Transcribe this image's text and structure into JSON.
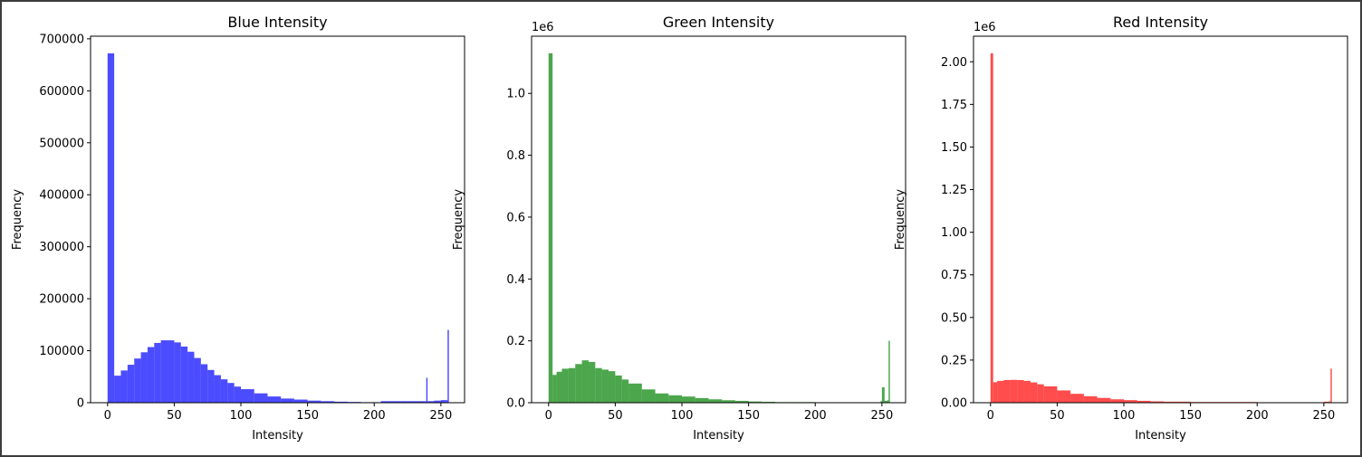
{
  "chart_data": [
    {
      "type": "bar",
      "title": "Blue Intensity",
      "xlabel": "Intensity",
      "ylabel": "Frequency",
      "color": "#0000ff",
      "opacity": 0.7,
      "xlim": [
        -12.75,
        267.75
      ],
      "ylim": [
        0,
        705000
      ],
      "y_offset_label": "",
      "xticks": [
        0,
        50,
        100,
        150,
        200,
        250
      ],
      "xtick_labels": [
        "0",
        "50",
        "100",
        "150",
        "200",
        "250"
      ],
      "yticks": [
        0,
        100000,
        200000,
        300000,
        400000,
        500000,
        600000,
        700000
      ],
      "ytick_labels": [
        "0",
        "100000",
        "200000",
        "300000",
        "400000",
        "500000",
        "600000",
        "700000"
      ],
      "x": [
        0,
        5,
        10,
        15,
        20,
        25,
        30,
        35,
        40,
        45,
        50,
        55,
        60,
        65,
        70,
        75,
        80,
        85,
        90,
        95,
        100,
        110,
        120,
        130,
        140,
        150,
        160,
        170,
        180,
        190,
        200,
        205,
        210,
        220,
        230,
        238,
        239,
        240,
        245,
        250,
        254,
        255
      ],
      "values": [
        672000,
        52000,
        62000,
        73000,
        85000,
        97000,
        107000,
        115000,
        120000,
        120000,
        116000,
        108000,
        98000,
        86000,
        74000,
        63000,
        53000,
        45000,
        38000,
        31000,
        26000,
        18000,
        12000,
        8000,
        6000,
        4000,
        3000,
        2000,
        1500,
        1000,
        1000,
        3000,
        3000,
        3000,
        3000,
        3000,
        48000,
        3000,
        4000,
        5000,
        5000,
        140000
      ]
    },
    {
      "type": "bar",
      "title": "Green Intensity",
      "xlabel": "Intensity",
      "ylabel": "Frequency",
      "color": "#008000",
      "opacity": 0.7,
      "xlim": [
        -12.75,
        267.75
      ],
      "ylim": [
        0,
        1185000
      ],
      "y_offset_label": "1e6",
      "xticks": [
        0,
        50,
        100,
        150,
        200,
        250
      ],
      "xtick_labels": [
        "0",
        "50",
        "100",
        "150",
        "200",
        "250"
      ],
      "yticks": [
        0,
        200000,
        400000,
        600000,
        800000,
        1000000
      ],
      "ytick_labels": [
        "0.0",
        "0.2",
        "0.4",
        "0.6",
        "0.8",
        "1.0"
      ],
      "x": [
        0,
        3,
        6,
        10,
        15,
        20,
        25,
        30,
        35,
        40,
        45,
        50,
        55,
        60,
        70,
        80,
        90,
        100,
        110,
        120,
        130,
        140,
        150,
        160,
        170,
        200,
        240,
        249,
        250,
        252,
        254,
        255
      ],
      "values": [
        1130000,
        90000,
        100000,
        110000,
        112000,
        125000,
        137000,
        132000,
        112000,
        107000,
        102000,
        88000,
        75000,
        62000,
        43000,
        30000,
        24000,
        20000,
        15000,
        11000,
        8000,
        6000,
        4000,
        3000,
        2000,
        1000,
        1000,
        5000,
        50000,
        6000,
        8000,
        200000
      ]
    },
    {
      "type": "bar",
      "title": "Red Intensity",
      "xlabel": "Intensity",
      "ylabel": "Frequency",
      "color": "#ff0000",
      "opacity": 0.7,
      "xlim": [
        -12.75,
        267.75
      ],
      "ylim": [
        0,
        2150000
      ],
      "y_offset_label": "1e6",
      "xticks": [
        0,
        50,
        100,
        150,
        200,
        250
      ],
      "xtick_labels": [
        "0",
        "50",
        "100",
        "150",
        "200",
        "250"
      ],
      "yticks": [
        0,
        250000,
        500000,
        750000,
        1000000,
        1250000,
        1500000,
        1750000,
        2000000
      ],
      "ytick_labels": [
        "0.00",
        "0.25",
        "0.50",
        "0.75",
        "1.00",
        "1.25",
        "1.50",
        "1.75",
        "2.00"
      ],
      "x": [
        0,
        2,
        5,
        10,
        15,
        20,
        25,
        30,
        35,
        40,
        50,
        60,
        70,
        80,
        90,
        100,
        110,
        120,
        130,
        150,
        200,
        250,
        254,
        255
      ],
      "values": [
        2050000,
        120000,
        128000,
        133000,
        134000,
        133000,
        128000,
        119000,
        108000,
        96000,
        72000,
        52000,
        38000,
        28000,
        20000,
        15000,
        11000,
        8000,
        6000,
        4000,
        2000,
        6000,
        8000,
        200000
      ]
    }
  ]
}
